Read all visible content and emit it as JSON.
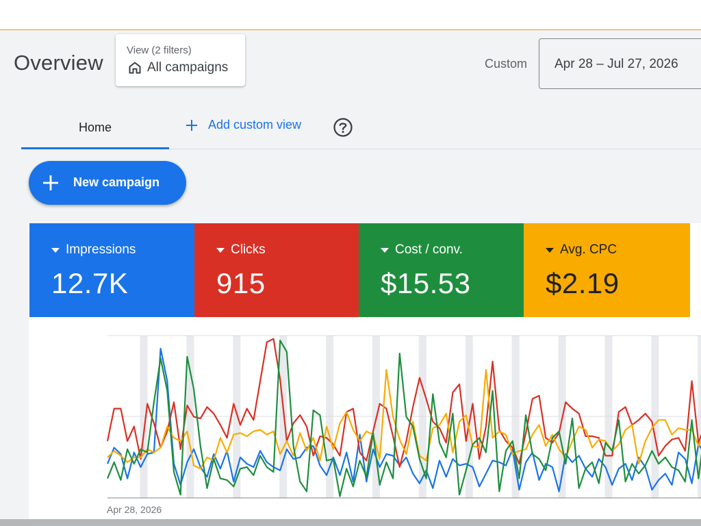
{
  "header": {
    "title": "Overview",
    "filter_view": "View (2 filters)",
    "filter_value": "All campaigns",
    "custom_label": "Custom",
    "date_range": "Apr 28 – Jul 27, 2026"
  },
  "tabs": {
    "home": "Home",
    "add_custom_view": "Add custom view"
  },
  "actions": {
    "new_campaign": "New campaign"
  },
  "metrics": [
    {
      "name": "Impressions",
      "value": "12.7K",
      "color": "#1a73e8",
      "text_color": "#ffffff"
    },
    {
      "name": "Clicks",
      "value": "915",
      "color": "#d93025",
      "text_color": "#ffffff"
    },
    {
      "name": "Cost / conv.",
      "value": "$15.53",
      "color": "#1e8e3e",
      "text_color": "#ffffff"
    },
    {
      "name": "Avg. CPC",
      "value": "$2.19",
      "color": "#f9ab00",
      "text_color": "#202124"
    }
  ],
  "icons": {
    "home": "home-icon",
    "add": "plus-icon",
    "help": "help-icon",
    "dropdown": "triangle-down-icon"
  },
  "chart_data": {
    "type": "line",
    "x_start_label": "Apr 28, 2026",
    "x_count": 91,
    "grid": true,
    "series": [
      {
        "color": "#1a73e8",
        "values": [
          21,
          31,
          27,
          12,
          28,
          19,
          27,
          28,
          92,
          72,
          21,
          8,
          22,
          30,
          19,
          13,
          27,
          18,
          29,
          10,
          25,
          21,
          19,
          29,
          22,
          19,
          17,
          30,
          24,
          25,
          31,
          32,
          20,
          14,
          25,
          14,
          28,
          10,
          39,
          10,
          30,
          19,
          27,
          26,
          20,
          25,
          15,
          9,
          17,
          6,
          23,
          13,
          24,
          20,
          21,
          19,
          7,
          15,
          23,
          22,
          20,
          30,
          5,
          22,
          28,
          11,
          21,
          19,
          4,
          27,
          22,
          26,
          18,
          13,
          24,
          19,
          8,
          18,
          21,
          11,
          25,
          19,
          5,
          11,
          15,
          8,
          28,
          24,
          9,
          33,
          27
        ]
      },
      {
        "color": "#d93025",
        "values": [
          35,
          55,
          55,
          35,
          44,
          24,
          58,
          46,
          31,
          41,
          59,
          30,
          57,
          50,
          49,
          56,
          52,
          45,
          37,
          58,
          45,
          55,
          48,
          72,
          96,
          98,
          73,
          35,
          46,
          51,
          44,
          26,
          38,
          37,
          33,
          26,
          53,
          55,
          28,
          23,
          41,
          58,
          55,
          38,
          19,
          35,
          56,
          74,
          61,
          47,
          43,
          34,
          65,
          70,
          35,
          58,
          24,
          44,
          84,
          42,
          35,
          31,
          21,
          40,
          61,
          63,
          37,
          34,
          40,
          59,
          55,
          52,
          38,
          38,
          37,
          26,
          26,
          53,
          56,
          45,
          48,
          52,
          47,
          26,
          32,
          36,
          37,
          29,
          72,
          34,
          45
        ]
      },
      {
        "color": "#f9ab00",
        "values": [
          25,
          29,
          26,
          22,
          25,
          25,
          30,
          28,
          31,
          44,
          37,
          35,
          41,
          20,
          18,
          25,
          23,
          37,
          28,
          39,
          40,
          38,
          41,
          42,
          39,
          41,
          27,
          35,
          26,
          40,
          29,
          37,
          23,
          44,
          30,
          46,
          53,
          42,
          35,
          41,
          39,
          24,
          79,
          50,
          36,
          27,
          47,
          26,
          23,
          43,
          45,
          52,
          28,
          47,
          51,
          32,
          31,
          79,
          37,
          41,
          39,
          27,
          29,
          30,
          39,
          45,
          32,
          39,
          30,
          25,
          35,
          44,
          42,
          31,
          36,
          35,
          29,
          33,
          42,
          45,
          21,
          35,
          43,
          48,
          48,
          39,
          43,
          42,
          42,
          32,
          39
        ]
      },
      {
        "color": "#1e8e3e",
        "values": [
          12,
          22,
          11,
          30,
          21,
          30,
          28,
          59,
          86,
          66,
          16,
          2,
          87,
          67,
          32,
          6,
          24,
          12,
          11,
          7,
          18,
          19,
          14,
          26,
          19,
          16,
          97,
          90,
          32,
          10,
          4,
          54,
          51,
          23,
          24,
          1,
          18,
          7,
          23,
          13,
          40,
          8,
          22,
          12,
          89,
          50,
          44,
          24,
          12,
          64,
          34,
          25,
          52,
          2,
          17,
          33,
          37,
          28,
          66,
          4,
          29,
          35,
          12,
          51,
          27,
          24,
          17,
          37,
          41,
          21,
          49,
          6,
          18,
          22,
          9,
          34,
          29,
          48,
          10,
          21,
          15,
          20,
          29,
          21,
          25,
          19,
          17,
          10,
          48,
          12,
          43
        ]
      }
    ]
  }
}
